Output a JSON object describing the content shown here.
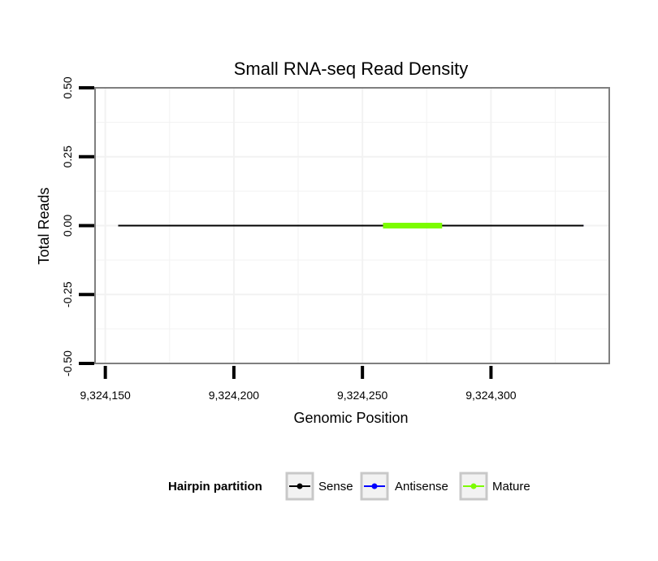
{
  "chart_data": {
    "type": "line",
    "title": "Small RNA-seq Read Density",
    "xlabel": "Genomic Position",
    "ylabel": "Total Reads",
    "xlim": [
      9324146,
      9324346
    ],
    "ylim": [
      -0.5,
      0.5
    ],
    "x_ticks": [
      9324150,
      9324200,
      9324250,
      9324300
    ],
    "x_tick_labels": [
      "9,324,150",
      "9,324,200",
      "9,324,250",
      "9,324,300"
    ],
    "y_ticks": [
      -0.5,
      -0.25,
      0,
      0.25,
      0.5
    ],
    "y_tick_labels": [
      "-0.50",
      "-0.25",
      "0.00",
      "0.25",
      "0.50"
    ],
    "grid": true,
    "legend": {
      "position": "bottom",
      "title": "Hairpin partition",
      "entries": [
        {
          "name": "Sense",
          "color": "#000000"
        },
        {
          "name": "Antisense",
          "color": "#0000ff"
        },
        {
          "name": "Mature",
          "color": "#7cfc00"
        }
      ]
    },
    "series": [
      {
        "name": "Antisense",
        "color": "#0000ff",
        "x": [
          9324155,
          9324336
        ],
        "y": [
          0,
          0
        ]
      },
      {
        "name": "Sense",
        "color": "#000000",
        "x": [
          9324155,
          9324336
        ],
        "y": [
          0,
          0
        ]
      },
      {
        "name": "Mature",
        "color": "#7cfc00",
        "x": [
          9324258,
          9324281
        ],
        "y": [
          0,
          0
        ]
      }
    ]
  }
}
